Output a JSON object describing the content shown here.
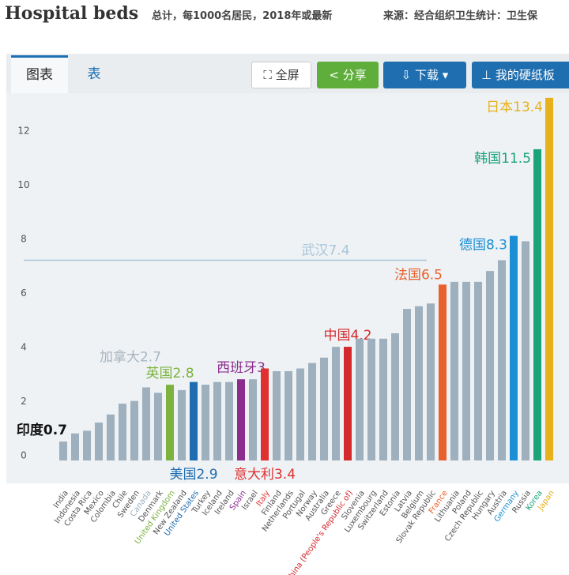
{
  "header": {
    "title": "Hospital beds",
    "subtitle": "总计，每1000名居民，2018年或最新",
    "source": "来源：经合组织卫生统计：卫生保"
  },
  "toolbar": {
    "tabs": [
      "图表",
      "表"
    ],
    "buttons": [
      "全屏",
      "分享",
      "下载",
      "我的硬纸板"
    ]
  },
  "chart_data": {
    "type": "bar",
    "categories": [
      "India",
      "Indonesia",
      "Costa Rica",
      "Mexico",
      "Colombia",
      "Chile",
      "Sweden",
      "Canada",
      "Denmark",
      "United Kingdom",
      "New Zealand",
      "United States",
      "Turkey",
      "Iceland",
      "Ireland",
      "Spain",
      "Israel",
      "Italy",
      "Finland",
      "Netherlands",
      "Portugal",
      "Norway",
      "Australia",
      "Greece",
      "China (People's Republic of)",
      "Slovenia",
      "Luxembourg",
      "Switzerland",
      "Estonia",
      "Latvia",
      "Belgium",
      "Slovak Republic",
      "France",
      "Lithuania",
      "Poland",
      "Czech Republic",
      "Hungary",
      "Austria",
      "Germany",
      "Russia",
      "Korea",
      "Japan"
    ],
    "values": [
      0.7,
      1.0,
      1.1,
      1.4,
      1.7,
      2.1,
      2.2,
      2.7,
      2.5,
      2.8,
      2.6,
      2.9,
      2.8,
      2.9,
      2.9,
      3.0,
      3.0,
      3.4,
      3.3,
      3.3,
      3.4,
      3.6,
      3.8,
      4.2,
      4.2,
      4.5,
      4.5,
      4.5,
      4.7,
      5.6,
      5.7,
      5.8,
      6.5,
      6.6,
      6.6,
      6.6,
      7.0,
      7.4,
      8.3,
      8.1,
      11.5,
      13.4
    ],
    "value_labels": [
      "印度0.7",
      null,
      null,
      null,
      null,
      null,
      null,
      "加拿大2.7",
      null,
      "英国2.8",
      null,
      "美国2.9",
      null,
      null,
      null,
      "西班牙3",
      null,
      "意大利3.4",
      null,
      null,
      null,
      null,
      null,
      null,
      "中国4.2",
      null,
      null,
      null,
      null,
      null,
      null,
      null,
      "法国6.5",
      null,
      null,
      null,
      null,
      null,
      "德国8.3",
      null,
      "韩国11.5",
      "日本13.4"
    ],
    "colors": [
      "#9eafbd",
      "#9eafbd",
      "#9eafbd",
      "#9eafbd",
      "#9eafbd",
      "#9eafbd",
      "#9eafbd",
      "#9eafbd",
      "#9eafbd",
      "#7db23f",
      "#9eafbd",
      "#1f6cb0",
      "#9eafbd",
      "#9eafbd",
      "#9eafbd",
      "#8b2d8f",
      "#9eafbd",
      "#e03030",
      "#9eafbd",
      "#9eafbd",
      "#9eafbd",
      "#9eafbd",
      "#9eafbd",
      "#9eafbd",
      "#d42a2e",
      "#9eafbd",
      "#9eafbd",
      "#9eafbd",
      "#9eafbd",
      "#9eafbd",
      "#9eafbd",
      "#9eafbd",
      "#e8612d",
      "#9eafbd",
      "#9eafbd",
      "#9eafbd",
      "#9eafbd",
      "#9eafbd",
      "#1b8fd6",
      "#9eafbd",
      "#1ba37a",
      "#e6b11a"
    ],
    "label_colors": [
      "#111111",
      null,
      null,
      null,
      null,
      null,
      null,
      "#a9b5c0",
      null,
      "#7db23f",
      null,
      "#1f6cb0",
      null,
      null,
      null,
      "#8b2d8f",
      null,
      "#e03030",
      null,
      null,
      null,
      null,
      null,
      null,
      "#d42a2e",
      null,
      null,
      null,
      null,
      null,
      null,
      null,
      "#e8612d",
      null,
      null,
      null,
      null,
      null,
      "#1b8fd6",
      null,
      "#1ba37a",
      "#e6b11a"
    ],
    "reference_line": {
      "label": "武汉7.4",
      "value": 7.4,
      "color": "#a9c6d8"
    },
    "ylim": [
      0,
      13.6
    ],
    "yticks": [
      0,
      2,
      4,
      6,
      8,
      10,
      12
    ],
    "grid": false
  }
}
